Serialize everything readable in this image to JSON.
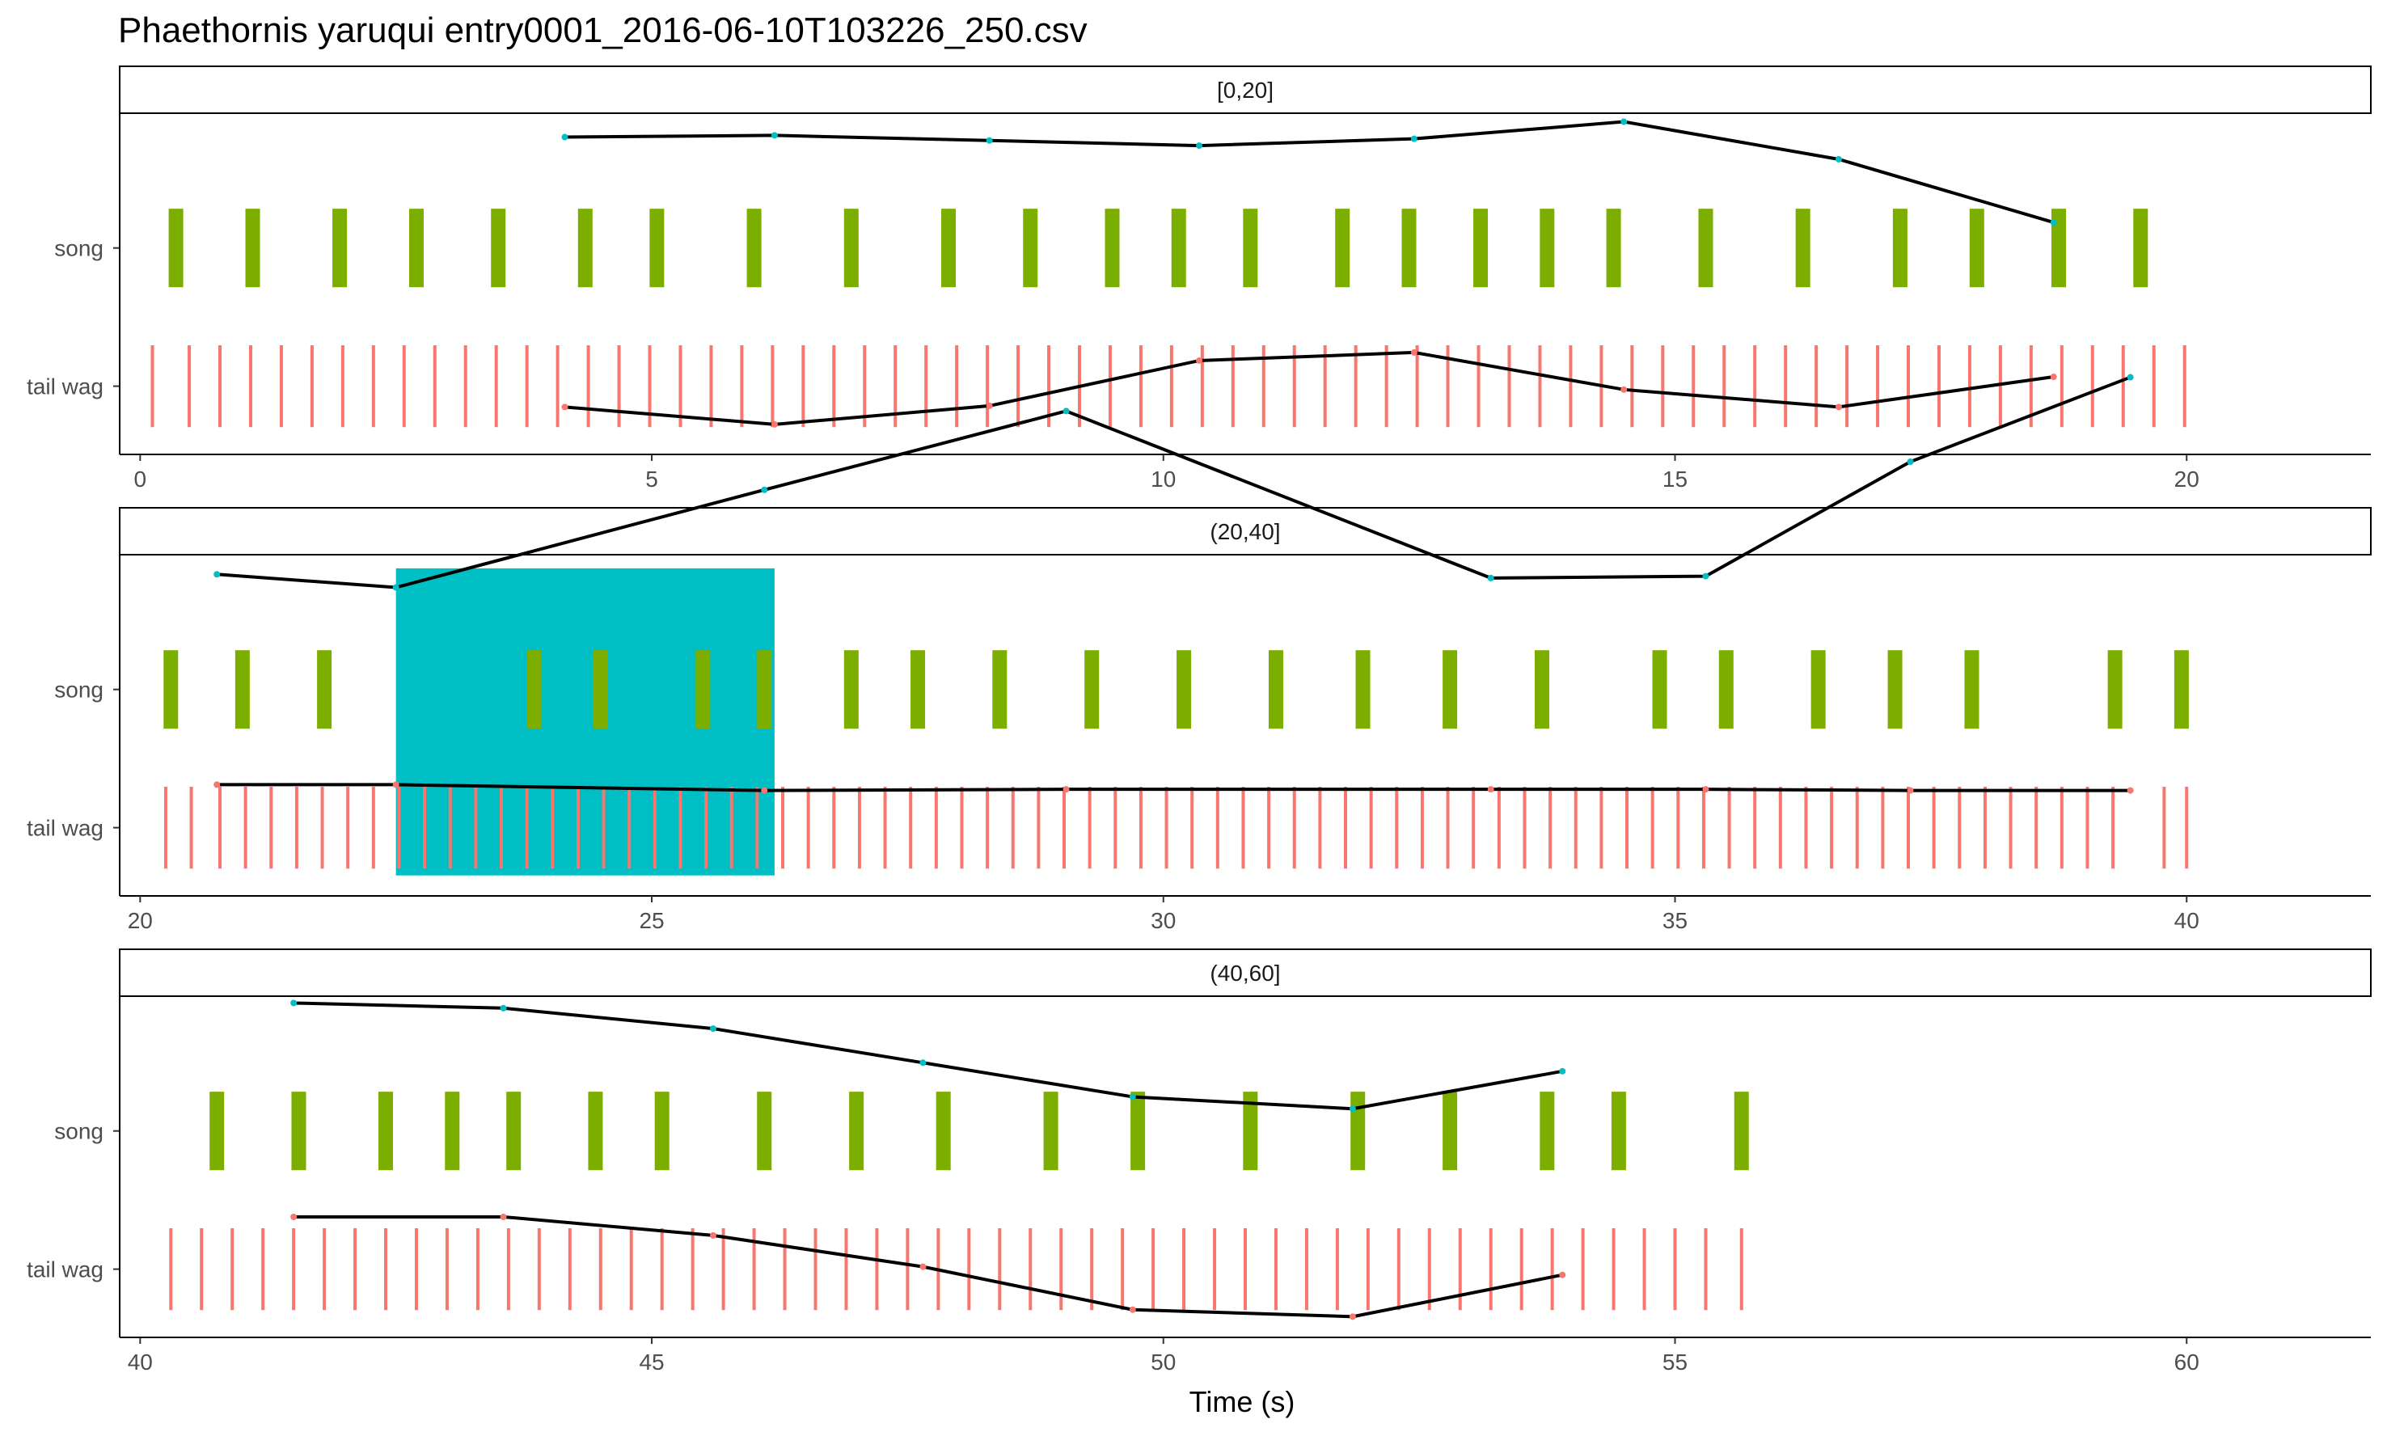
{
  "chart_data": {
    "type": "event-raster",
    "title": "Phaethornis yaruqui   entry0001_2016-06-10T103226_250.csv",
    "xlabel": "Time (s)",
    "ylabel": "",
    "categories": [
      "song",
      "tail wag"
    ],
    "colors": {
      "song": "#7CAE00",
      "tail wag": "#F8766D",
      "highlight": "#00BFC4",
      "line": "#000000",
      "song_dot": "#00BFC4",
      "tail_dot": "#F8766D"
    },
    "grid": false,
    "facets": [
      {
        "label": "[0,20]",
        "xlim": [
          -0.2,
          21.8
        ],
        "xticks": [
          "0",
          "5",
          "10",
          "15",
          "20"
        ],
        "xtick_values": [
          0,
          5,
          10,
          15,
          20
        ],
        "song_events": [
          0.35,
          1.1,
          1.95,
          2.7,
          3.5,
          4.35,
          5.05,
          6.0,
          6.95,
          7.9,
          8.7,
          9.5,
          10.15,
          10.85,
          11.75,
          12.4,
          13.1,
          13.75,
          14.4,
          15.3,
          16.25,
          17.2,
          17.95,
          18.75,
          19.55
        ],
        "tail_events": [
          0.12,
          0.48,
          0.78,
          1.08,
          1.38,
          1.68,
          1.98,
          2.28,
          2.58,
          2.88,
          3.18,
          3.48,
          3.78,
          4.08,
          4.38,
          4.68,
          4.98,
          5.28,
          5.58,
          5.88,
          6.18,
          6.48,
          6.78,
          7.08,
          7.38,
          7.68,
          7.98,
          8.28,
          8.58,
          8.88,
          9.18,
          9.48,
          9.78,
          10.08,
          10.38,
          10.68,
          10.98,
          11.28,
          11.58,
          11.88,
          12.18,
          12.48,
          12.78,
          13.08,
          13.38,
          13.68,
          13.98,
          14.28,
          14.58,
          14.88,
          15.18,
          15.48,
          15.78,
          16.08,
          16.38,
          16.68,
          16.98,
          17.28,
          17.58,
          17.88,
          18.18,
          18.48,
          18.78,
          19.08,
          19.38,
          19.68,
          19.98
        ],
        "song_rate_curve": {
          "x": [
            4.15,
            6.2,
            8.3,
            10.35,
            12.45,
            14.5,
            16.6,
            18.7
          ],
          "level": [
            0.9,
            0.91,
            0.88,
            0.85,
            0.89,
            0.99,
            0.77,
            0.4
          ]
        },
        "tail_rate_curve": {
          "x": [
            4.15,
            6.2,
            8.3,
            10.35,
            12.45,
            14.5,
            16.6,
            18.7
          ],
          "level": [
            0.35,
            0.2,
            0.36,
            0.75,
            0.82,
            0.5,
            0.35,
            0.61
          ]
        },
        "highlight": null
      },
      {
        "label": "(20,40]",
        "xlim": [
          19.8,
          41.8
        ],
        "xticks": [
          "20",
          "25",
          "30",
          "35",
          "40"
        ],
        "xtick_values": [
          20,
          25,
          30,
          35,
          40
        ],
        "song_events": [
          20.3,
          21.0,
          21.8,
          23.85,
          24.5,
          25.5,
          26.1,
          26.95,
          27.6,
          28.4,
          29.3,
          30.2,
          31.1,
          31.95,
          32.8,
          33.7,
          34.85,
          35.5,
          36.4,
          37.15,
          37.9,
          39.3,
          39.95
        ],
        "tail_events": [
          20.25,
          20.5,
          20.78,
          21.03,
          21.28,
          21.53,
          21.78,
          22.03,
          22.28,
          22.53,
          22.78,
          23.03,
          23.28,
          23.53,
          23.78,
          24.03,
          24.28,
          24.53,
          24.78,
          25.03,
          25.28,
          25.53,
          25.78,
          26.03,
          26.28,
          26.53,
          26.78,
          27.03,
          27.28,
          27.53,
          27.78,
          28.03,
          28.28,
          28.53,
          28.78,
          29.03,
          29.28,
          29.53,
          29.78,
          30.03,
          30.28,
          30.53,
          30.78,
          31.03,
          31.28,
          31.53,
          31.78,
          32.03,
          32.28,
          32.53,
          32.78,
          33.03,
          33.28,
          33.53,
          33.78,
          34.03,
          34.28,
          34.53,
          34.78,
          35.03,
          35.28,
          35.53,
          35.78,
          36.03,
          36.28,
          36.53,
          36.78,
          37.03,
          37.28,
          37.53,
          37.78,
          38.03,
          38.28,
          38.53,
          38.78,
          39.03,
          39.28,
          39.78,
          40.0
        ],
        "song_rate_curve": {
          "x": [
            20.75,
            22.5,
            26.1,
            29.05,
            33.2,
            35.3,
            37.3,
            39.45
          ],
          "level": [
            0.95,
            0.88,
            1.4,
            1.82,
            0.93,
            0.94,
            1.55,
            2.0
          ]
        },
        "tail_rate_curve": {
          "x": [
            20.75,
            22.5,
            26.1,
            29.05,
            33.2,
            35.3,
            37.3,
            39.45
          ],
          "level": [
            0.9,
            0.9,
            0.85,
            0.86,
            0.86,
            0.86,
            0.85,
            0.85
          ]
        },
        "highlight": {
          "x_start": 22.5,
          "x_end": 26.2
        }
      },
      {
        "label": "(40,60]",
        "xlim": [
          39.8,
          61.8
        ],
        "xticks": [
          "40",
          "45",
          "50",
          "55",
          "60"
        ],
        "xtick_values": [
          40,
          45,
          50,
          55,
          60
        ],
        "song_events": [
          40.75,
          41.55,
          42.4,
          43.05,
          43.65,
          44.45,
          45.1,
          46.1,
          47.0,
          47.85,
          48.9,
          49.75,
          50.85,
          51.9,
          52.8,
          53.75,
          54.45,
          55.65
        ],
        "tail_events": [
          40.3,
          40.6,
          40.9,
          41.2,
          41.5,
          41.8,
          42.1,
          42.4,
          42.7,
          43.0,
          43.3,
          43.6,
          43.9,
          44.2,
          44.5,
          44.8,
          45.1,
          45.4,
          45.7,
          46.0,
          46.3,
          46.6,
          46.9,
          47.2,
          47.5,
          47.8,
          48.1,
          48.4,
          48.7,
          49.0,
          49.3,
          49.6,
          49.9,
          50.2,
          50.5,
          50.8,
          51.1,
          51.4,
          51.7,
          52.0,
          52.3,
          52.6,
          52.9,
          53.2,
          53.5,
          53.8,
          54.1,
          54.4,
          54.7,
          55.0,
          55.3,
          55.65
        ],
        "song_rate_curve": {
          "x": [
            41.5,
            43.55,
            45.6,
            47.65,
            49.7,
            51.85,
            53.9
          ],
          "level": [
            1.0,
            0.97,
            0.85,
            0.65,
            0.45,
            0.38,
            0.6
          ]
        },
        "tail_rate_curve": {
          "x": [
            41.5,
            43.55,
            45.6,
            47.65,
            49.7,
            51.85,
            53.9
          ],
          "level": [
            0.98,
            0.98,
            0.82,
            0.55,
            0.18,
            0.12,
            0.48
          ]
        },
        "highlight": null
      }
    ]
  }
}
